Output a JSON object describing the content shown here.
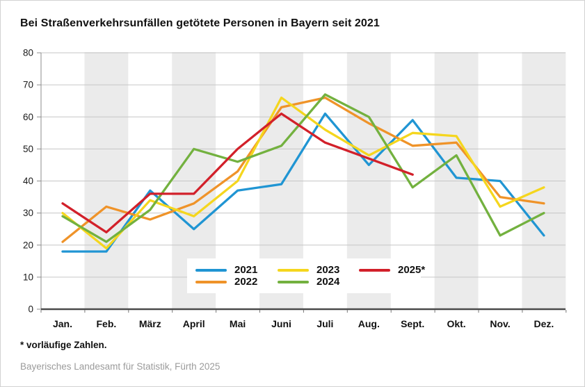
{
  "title": "Bei Straßenverkehrsunfällen getötete Personen in Bayern seit 2021",
  "footnote": "* vorläufige Zahlen.",
  "source": "Bayerisches Landesamt für Statistik, Fürth 2025",
  "chart_data": {
    "type": "line",
    "categories": [
      "Jan.",
      "Feb.",
      "März",
      "April",
      "Mai",
      "Juni",
      "Juli",
      "Aug.",
      "Sept.",
      "Okt.",
      "Nov.",
      "Dez."
    ],
    "series": [
      {
        "name": "2021",
        "color": "#2095D3",
        "values": [
          18,
          18,
          37,
          25,
          37,
          39,
          61,
          45,
          59,
          41,
          40,
          23
        ]
      },
      {
        "name": "2022",
        "color": "#EF9329",
        "values": [
          21,
          32,
          28,
          33,
          43,
          63,
          66,
          58,
          51,
          52,
          35,
          33
        ]
      },
      {
        "name": "2023",
        "color": "#F5D61E",
        "values": [
          30,
          19,
          34,
          29,
          40,
          66,
          56,
          48,
          55,
          54,
          32,
          38
        ]
      },
      {
        "name": "2024",
        "color": "#73B13F",
        "values": [
          29,
          21,
          31,
          50,
          46,
          51,
          67,
          60,
          38,
          48,
          23,
          30
        ]
      },
      {
        "name": "2025*",
        "color": "#D2202A",
        "values": [
          33,
          24,
          36,
          36,
          50,
          61,
          52,
          47,
          42,
          null,
          null,
          null
        ]
      }
    ],
    "ylim": [
      0,
      80
    ],
    "y_ticks": [
      0,
      10,
      20,
      30,
      40,
      50,
      60,
      70,
      80
    ],
    "grid": true,
    "band_color": "#EBEBEB",
    "banded_categories": [
      "Feb.",
      "April",
      "Juni",
      "Aug.",
      "Okt.",
      "Dez."
    ],
    "gridline_color": "#C6C6C6",
    "axis_color": "#4A4A4A",
    "legend_position": "bottom-center-inside"
  }
}
